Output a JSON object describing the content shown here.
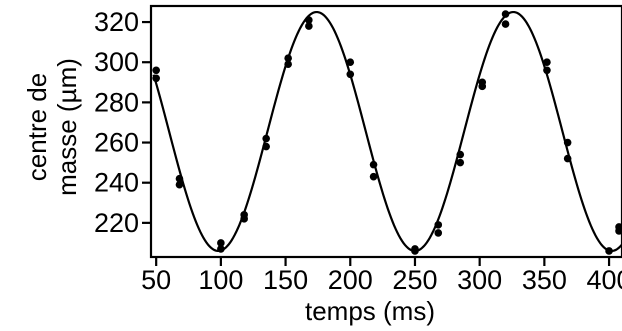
{
  "chart_data": {
    "type": "scatter",
    "title": "",
    "xlabel": "temps (ms)",
    "ylabel_lines": [
      "centre de",
      "masse (µm)"
    ],
    "xlim": [
      46,
      410
    ],
    "ylim": [
      203,
      328
    ],
    "xticks": [
      50,
      100,
      150,
      200,
      250,
      300,
      350,
      400
    ],
    "yticks": [
      220,
      240,
      260,
      280,
      300,
      320
    ],
    "grid": false,
    "legend": "none",
    "series": [
      {
        "kind": "points",
        "x": [
          50,
          50,
          68,
          68,
          100,
          100,
          118,
          118,
          135,
          135,
          152,
          152,
          168,
          168,
          200,
          200,
          218,
          218,
          250,
          250,
          268,
          268,
          285,
          285,
          302,
          302,
          320,
          320,
          352,
          352,
          368,
          368,
          400,
          418,
          418
        ],
        "y": [
          292,
          296,
          239,
          242,
          207,
          210,
          222,
          224,
          258,
          262,
          299,
          302,
          318,
          321,
          294,
          300,
          243,
          249,
          206,
          207,
          215,
          219,
          250,
          254,
          288,
          290,
          319,
          324,
          296,
          300,
          252,
          260,
          206,
          216,
          218
        ]
      },
      {
        "kind": "fit",
        "model": "sine",
        "mean": 265.5,
        "amplitude": 59.5,
        "period_ms": 152,
        "peak_x_ms": 174,
        "x_range": [
          48,
          410
        ]
      }
    ]
  }
}
